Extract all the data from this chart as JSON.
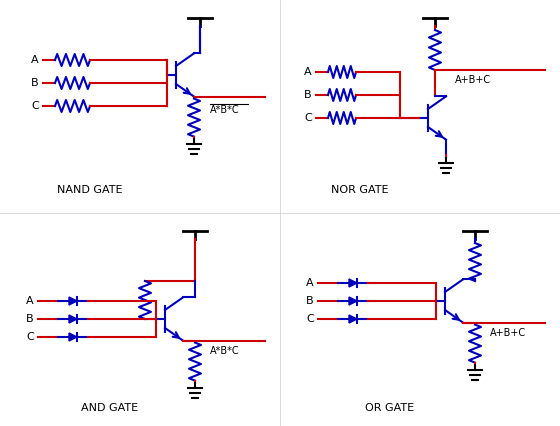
{
  "background": "#ffffff",
  "blue": "#0000bb",
  "red": "#cc0000",
  "black": "#000000",
  "gate_labels": [
    "NAND GATE",
    "NOR GATE",
    "AND GATE",
    "OR GATE"
  ]
}
